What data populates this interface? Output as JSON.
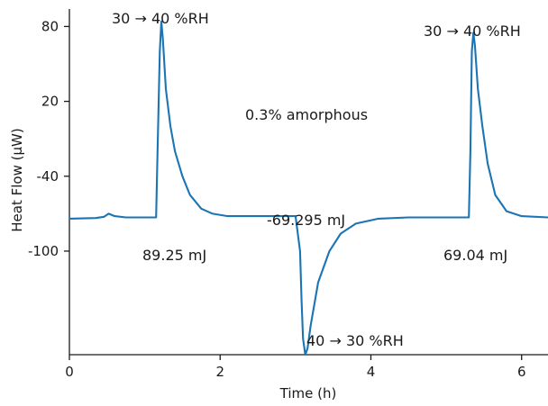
{
  "chart_data": {
    "type": "line",
    "title": "",
    "xlabel": "Time (h)",
    "ylabel": "Heat Flow (μW)",
    "xlim": [
      0,
      6.35
    ],
    "ylim": [
      -183,
      94
    ],
    "xticks": [
      0,
      2,
      4,
      6
    ],
    "yticks": [
      80,
      20,
      -40,
      -100
    ],
    "grid": false,
    "colors": {
      "series": "#1b75b5",
      "axis": "#1a1a1a"
    },
    "series": [
      {
        "name": "",
        "x": [
          0,
          0.35,
          0.46,
          0.52,
          0.6,
          0.75,
          1.0,
          1.15,
          1.17,
          1.2,
          1.22,
          1.24,
          1.28,
          1.34,
          1.4,
          1.5,
          1.6,
          1.75,
          1.9,
          2.1,
          2.5,
          3.0,
          3.06,
          3.08,
          3.1,
          3.13,
          3.16,
          3.2,
          3.3,
          3.45,
          3.6,
          3.8,
          4.1,
          4.5,
          5.0,
          5.3,
          5.32,
          5.34,
          5.36,
          5.38,
          5.42,
          5.48,
          5.55,
          5.65,
          5.8,
          6.0,
          6.35
        ],
        "y": [
          -74,
          -73.5,
          -72.5,
          -70,
          -72,
          -73,
          -73,
          -73,
          -20,
          60,
          84,
          70,
          30,
          0,
          -20,
          -40,
          -55,
          -66,
          -70,
          -72,
          -72,
          -72,
          -100,
          -140,
          -170,
          -183,
          -178,
          -160,
          -125,
          -100,
          -86,
          -78,
          -74,
          -73,
          -73,
          -73,
          -20,
          60,
          75,
          65,
          30,
          0,
          -30,
          -55,
          -68,
          -72,
          -73
        ]
      }
    ],
    "annotations": [
      {
        "id": "rh1",
        "text": "30 → 40 %RH"
      },
      {
        "id": "e1",
        "text": "89.25 mJ"
      },
      {
        "id": "rh2",
        "text": "40 → 30 %RH"
      },
      {
        "id": "e2",
        "text": "-69.295 mJ"
      },
      {
        "id": "rh3",
        "text": "30 → 40 %RH"
      },
      {
        "id": "e3",
        "text": "69.04 mJ"
      },
      {
        "id": "amorph",
        "text": "0.3% amorphous"
      }
    ]
  }
}
